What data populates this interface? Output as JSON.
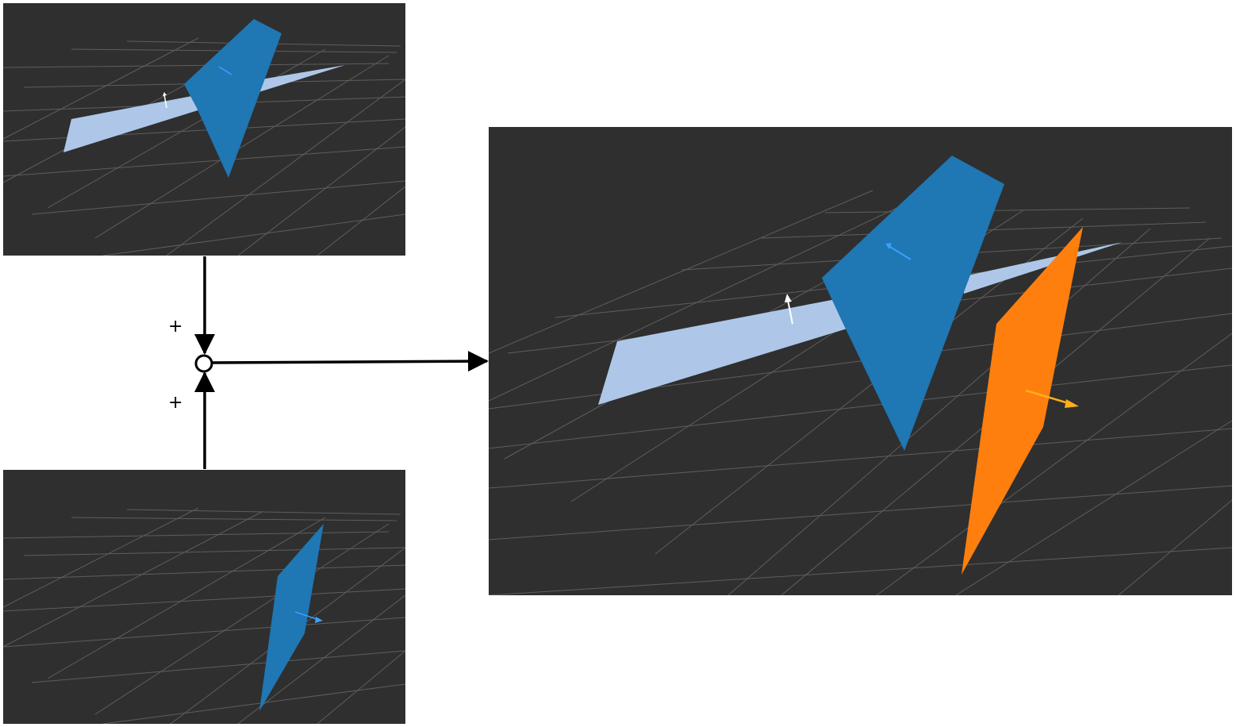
{
  "diagram": {
    "operator": {
      "symbol": "○",
      "meaning": "sum"
    },
    "inputs": [
      {
        "sign": "+",
        "label": "",
        "panel": "top"
      },
      {
        "sign": "+",
        "label": "",
        "panel": "bottom"
      }
    ],
    "output": {
      "label": "",
      "panel": "result"
    }
  },
  "colors": {
    "viewport_bg": "#2f2f2f",
    "grid": "#5e5e5e",
    "plane_light_blue": "#aec7e8",
    "plane_blue": "#1f77b4",
    "plane_orange": "#ff7f0e",
    "arrow_white": "#ffffff",
    "arrow_blue": "#3aa0ff",
    "arrow_orange": "#ffae1a",
    "connector": "#000000"
  }
}
